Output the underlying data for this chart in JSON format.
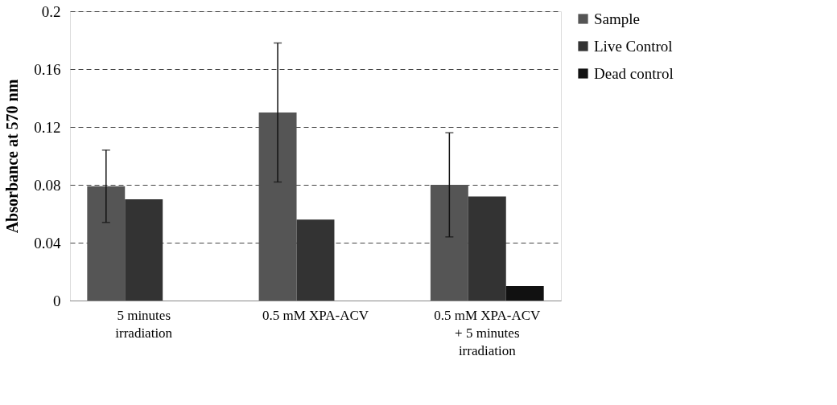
{
  "chart_data": {
    "type": "bar",
    "ylabel": "Absorbance at 570 nm",
    "categories": [
      "5 minutes irradiation",
      "0.5 mM XPA-ACV",
      "0.5 mM XPA-ACV + 5 minutes irradiation"
    ],
    "series": [
      {
        "name": "Sample",
        "color": "#555555",
        "values": [
          0.079,
          0.13,
          0.08
        ],
        "errors": [
          0.025,
          0.048,
          0.036
        ]
      },
      {
        "name": "Live Control",
        "color": "#333333",
        "values": [
          0.07,
          0.056,
          0.072
        ]
      },
      {
        "name": "Dead control",
        "color": "#111111",
        "values": [
          0,
          0,
          0.01
        ]
      }
    ],
    "ylim": [
      0,
      0.2
    ],
    "yticks": [
      0,
      0.04,
      0.08,
      0.12,
      0.16,
      0.2
    ],
    "grid": "y",
    "legend": "right"
  }
}
